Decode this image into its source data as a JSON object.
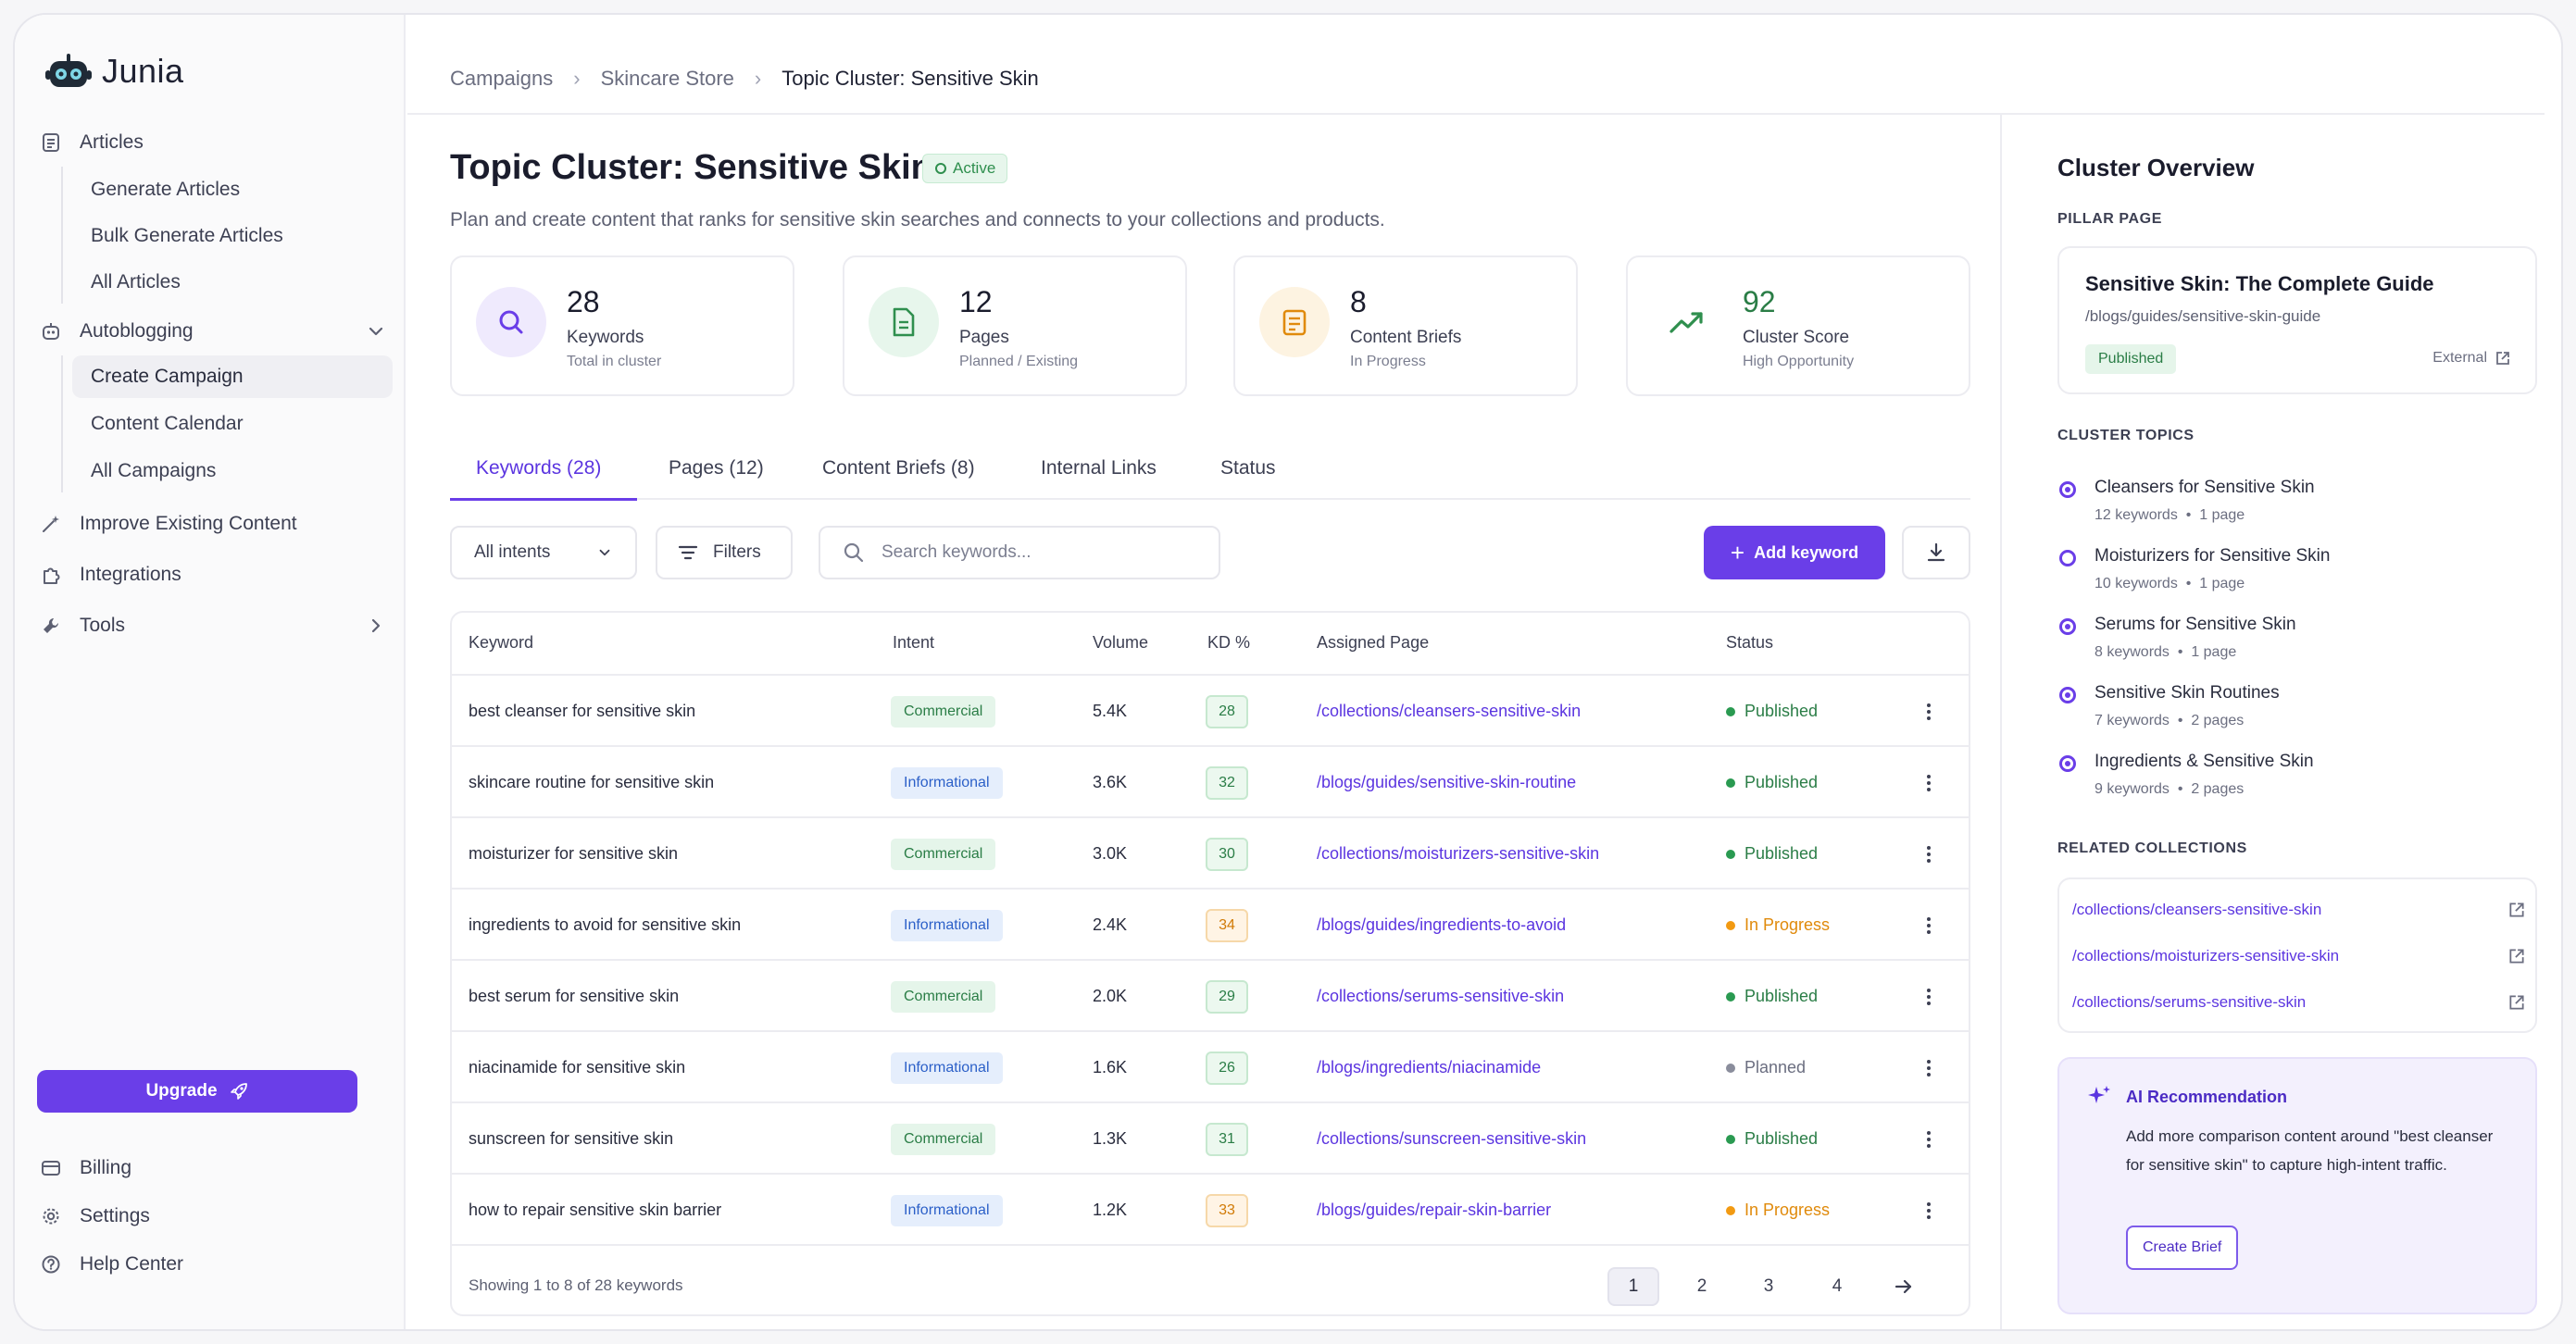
{
  "brand": {
    "name": "Junia"
  },
  "colors": {
    "accent": "#6a3ee8",
    "success": "#2a7d46",
    "warning": "#e08a0b",
    "info": "#2c60c8"
  },
  "sidebar": {
    "articles": {
      "label": "Articles",
      "icon": "document-icon",
      "items": [
        "Generate Articles",
        "Bulk Generate Articles",
        "All Articles"
      ]
    },
    "autoblogging": {
      "label": "Autoblogging",
      "icon": "robot-icon",
      "items": [
        "Create Campaign",
        "Content Calendar",
        "All Campaigns"
      ],
      "active_item": "Create Campaign"
    },
    "improve": {
      "label": "Improve Existing Content",
      "icon": "sparkle-wand-icon"
    },
    "integrations": {
      "label": "Integrations",
      "icon": "puzzle-icon"
    },
    "tools": {
      "label": "Tools",
      "icon": "wrench-icon"
    },
    "upgrade": {
      "label": "Upgrade",
      "icon": "rocket-icon"
    },
    "billing": {
      "label": "Billing",
      "icon": "card-icon"
    },
    "settings": {
      "label": "Settings",
      "icon": "gear-icon"
    },
    "help": {
      "label": "Help Center",
      "icon": "question-icon"
    }
  },
  "breadcrumb": [
    "Campaigns",
    "Skincare Store",
    "Topic Cluster: Sensitive Skin"
  ],
  "page": {
    "title": "Topic Cluster: Sensitive Skin",
    "badge": "Active",
    "subtitle": "Plan and create content that ranks for sensitive skin searches and connects to your collections and products."
  },
  "stats": [
    {
      "value": "28",
      "label": "Keywords",
      "sub": "Total in cluster",
      "icon": "search-icon"
    },
    {
      "value": "12",
      "label": "Pages",
      "sub": "Planned / Existing",
      "icon": "page-icon"
    },
    {
      "value": "8",
      "label": "Content Briefs",
      "sub": "In Progress",
      "icon": "brief-icon"
    },
    {
      "value": "92",
      "label": "Cluster Score",
      "sub": "High Opportunity",
      "icon": "trend-up-icon"
    }
  ],
  "tabs": [
    "Keywords (28)",
    "Pages (12)",
    "Content Briefs (8)",
    "Internal Links",
    "Status"
  ],
  "active_tab": "Keywords (28)",
  "controls": {
    "intent_select": "All intents",
    "filters": "Filters",
    "search_placeholder": "Search keywords...",
    "add_keyword": "Add keyword"
  },
  "table": {
    "headers": [
      "Keyword",
      "Intent",
      "Volume",
      "KD %",
      "Assigned Page",
      "Status"
    ],
    "rows": [
      {
        "keyword": "best cleanser for sensitive skin",
        "intent": "Commercial",
        "volume": "5.4K",
        "kd": "28",
        "page": "/collections/cleansers-sensitive-skin",
        "status": "Published"
      },
      {
        "keyword": "skincare routine for sensitive skin",
        "intent": "Informational",
        "volume": "3.6K",
        "kd": "32",
        "page": "/blogs/guides/sensitive-skin-routine",
        "status": "Published"
      },
      {
        "keyword": "moisturizer for sensitive skin",
        "intent": "Commercial",
        "volume": "3.0K",
        "kd": "30",
        "page": "/collections/moisturizers-sensitive-skin",
        "status": "Published"
      },
      {
        "keyword": "ingredients to avoid for sensitive skin",
        "intent": "Informational",
        "volume": "2.4K",
        "kd": "34",
        "page": "/blogs/guides/ingredients-to-avoid",
        "status": "In Progress"
      },
      {
        "keyword": "best serum for sensitive skin",
        "intent": "Commercial",
        "volume": "2.0K",
        "kd": "29",
        "page": "/collections/serums-sensitive-skin",
        "status": "Published"
      },
      {
        "keyword": "niacinamide for sensitive skin",
        "intent": "Informational",
        "volume": "1.6K",
        "kd": "26",
        "page": "/blogs/ingredients/niacinamide",
        "status": "Planned"
      },
      {
        "keyword": "sunscreen for sensitive skin",
        "intent": "Commercial",
        "volume": "1.3K",
        "kd": "31",
        "page": "/collections/sunscreen-sensitive-skin",
        "status": "Published"
      },
      {
        "keyword": "how to repair sensitive skin barrier",
        "intent": "Informational",
        "volume": "1.2K",
        "kd": "33",
        "page": "/blogs/guides/repair-skin-barrier",
        "status": "In Progress"
      }
    ],
    "footer": "Showing 1 to 8 of 28 keywords",
    "pages": [
      "1",
      "2",
      "3",
      "4"
    ],
    "current_page": "1"
  },
  "overview": {
    "title": "Cluster Overview",
    "pillar_label": "PILLAR PAGE",
    "pillar": {
      "title": "Sensitive Skin: The Complete Guide",
      "url": "/blogs/guides/sensitive-skin-guide",
      "status": "Published",
      "external": "External"
    },
    "topics_label": "CLUSTER TOPICS",
    "topics": [
      {
        "name": "Cleansers for Sensitive Skin",
        "keywords": "12 keywords",
        "pages": "1 page"
      },
      {
        "name": "Moisturizers for Sensitive Skin",
        "keywords": "10 keywords",
        "pages": "1 page"
      },
      {
        "name": "Serums for Sensitive Skin",
        "keywords": "8 keywords",
        "pages": "1 page"
      },
      {
        "name": "Sensitive Skin Routines",
        "keywords": "7 keywords",
        "pages": "2 pages"
      },
      {
        "name": "Ingredients & Sensitive Skin",
        "keywords": "9 keywords",
        "pages": "2 pages"
      }
    ],
    "collections_label": "RELATED COLLECTIONS",
    "collections": [
      "/collections/cleansers-sensitive-skin",
      "/collections/moisturizers-sensitive-skin",
      "/collections/serums-sensitive-skin"
    ],
    "ai": {
      "title": "AI Recommendation",
      "text": "Add more comparison content around \"best cleanser for sensitive skin\" to capture high-intent traffic.",
      "button": "Create Brief"
    }
  }
}
